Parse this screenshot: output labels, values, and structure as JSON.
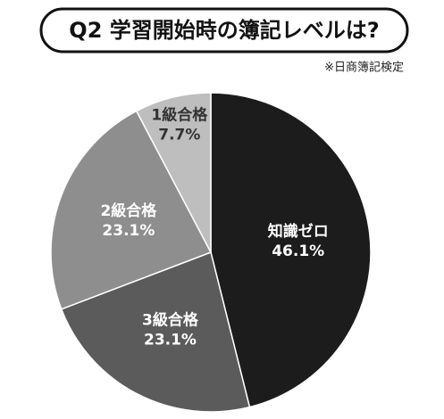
{
  "chart_data": {
    "type": "pie",
    "title": "Q2 学習開始時の簿記レベルは?",
    "subtitle": "※日商簿記検定",
    "categories": [
      "知識ゼロ",
      "3級合格",
      "2級合格",
      "1級合格"
    ],
    "values": [
      46.1,
      23.1,
      23.1,
      7.7
    ],
    "value_labels": [
      "46.1%",
      "23.1%",
      "23.1%",
      "7.7%"
    ],
    "colors": [
      "#1c1c1c",
      "#5b5b5b",
      "#8e8e8e",
      "#bebebe"
    ]
  }
}
